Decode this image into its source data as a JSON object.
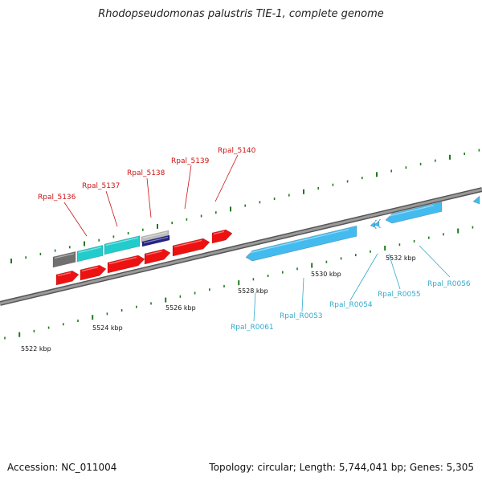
{
  "title": "Rhodopseudomonas palustris TIE-1, complete genome",
  "footer": {
    "accession": "Accession: NC_011004",
    "summary": "Topology: circular; Length: 5,744,041 bp; Genes: 5,305"
  },
  "colors": {
    "backbone": "#8a8a8a",
    "tick": "#1e7a1e",
    "gene_red": "#ee1111",
    "gene_cyan": "#22cccc",
    "gene_gray": "#707070",
    "gene_lightgray": "#bbbbbb",
    "gene_navy": "#222288",
    "rna_blue": "#44bbee",
    "label_red": "#cc1111",
    "label_blue": "#33aacc"
  },
  "scale_labels": [
    {
      "kbp": 5522,
      "text": "5522 kbp"
    },
    {
      "kbp": 5524,
      "text": "5524 kbp"
    },
    {
      "kbp": 5526,
      "text": "5526 kbp"
    },
    {
      "kbp": 5528,
      "text": "5528 kbp"
    },
    {
      "kbp": 5530,
      "text": "5530 kbp"
    },
    {
      "kbp": 5532,
      "text": "5532 kbp"
    }
  ],
  "gene_labels_top": [
    "Rpal_5136",
    "Rpal_5137",
    "Rpal_5138",
    "Rpal_5139",
    "Rpal_5140"
  ],
  "gene_labels_bottom": [
    "Rpal_R0061",
    "Rpal_R0053",
    "Rpal_R0054",
    "Rpal_R0055",
    "Rpal_R0056"
  ]
}
